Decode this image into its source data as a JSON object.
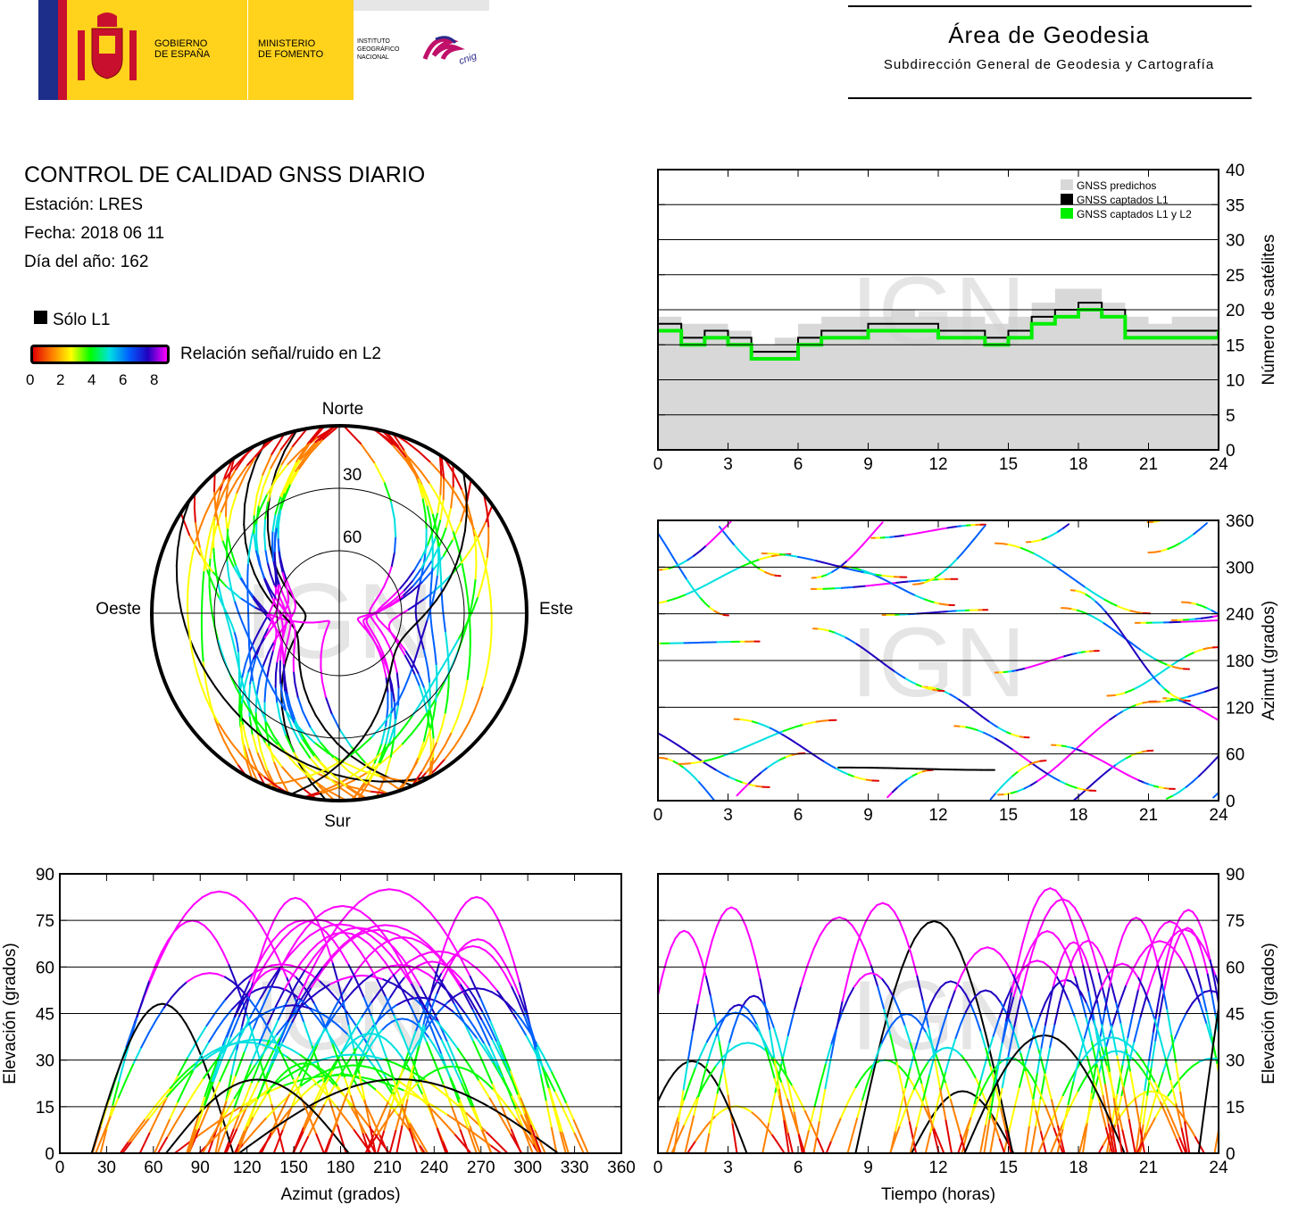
{
  "header": {
    "gov_line1": "GOBIERNO",
    "gov_line2": "DE ESPAÑA",
    "min_line1": "MINISTERIO",
    "min_line2": "DE FOMENTO",
    "inst_line1": "INSTITUTO",
    "inst_line2": "GEOGRÁFICO",
    "inst_line3": "NACIONAL",
    "cnig": "cnig",
    "area_title": "Área de Geodesia",
    "area_subtitle": "Subdirección General de Geodesia y Cartografía"
  },
  "report": {
    "title": "CONTROL DE CALIDAD GNSS DIARIO",
    "station": "Estación: LRES",
    "date": "Fecha: 2018 06 11",
    "doy": "Día del año: 162"
  },
  "legend": {
    "l1_only": "Sólo L1",
    "snr_label": "Relación señal/ruido en L2",
    "snr_ticks": [
      "0",
      "2",
      "4",
      "6",
      "8"
    ],
    "colors": {
      "l1_only": "#000000",
      "snr_gradient": [
        "#e00000",
        "#ff8000",
        "#ffff00",
        "#00ff00",
        "#00e0e0",
        "#0060ff",
        "#2000c0",
        "#ff00ff"
      ]
    }
  },
  "watermark": "IGN",
  "chart_data": [
    {
      "type": "line",
      "title": "",
      "xlabel": "",
      "ylabel": "Número de satélites",
      "xlim": [
        0,
        24
      ],
      "ylim": [
        0,
        40
      ],
      "x_ticks": [
        "0",
        "3",
        "6",
        "9",
        "12",
        "15",
        "18",
        "21",
        "24"
      ],
      "y_ticks": [
        "0",
        "5",
        "10",
        "15",
        "20",
        "25",
        "30",
        "35",
        "40"
      ],
      "grid": true,
      "legend_position": "top-right",
      "x": [
        0,
        1,
        2,
        3,
        4,
        5,
        6,
        7,
        8,
        9,
        10,
        11,
        12,
        13,
        14,
        15,
        16,
        17,
        18,
        19,
        20,
        21,
        22,
        23,
        24
      ],
      "series": [
        {
          "name": "GNSS predichos",
          "color": "#d8d8d8",
          "values": [
            19,
            18,
            18,
            17,
            15,
            16,
            18,
            19,
            19,
            19,
            20,
            19,
            19,
            19,
            18,
            19,
            21,
            23,
            23,
            21,
            19,
            18,
            19,
            19,
            20
          ]
        },
        {
          "name": "GNSS captados L1",
          "color": "#000000",
          "values": [
            18,
            16,
            17,
            16,
            14,
            14,
            16,
            17,
            17,
            18,
            18,
            18,
            17,
            17,
            16,
            17,
            19,
            20,
            21,
            20,
            17,
            17,
            17,
            17,
            18
          ]
        },
        {
          "name": "GNSS captados L1 y L2",
          "color": "#00ee00",
          "values": [
            17,
            15,
            16,
            15,
            13,
            13,
            15,
            16,
            16,
            17,
            17,
            17,
            16,
            16,
            15,
            16,
            18,
            19,
            20,
            19,
            16,
            16,
            16,
            16,
            17
          ]
        }
      ]
    },
    {
      "type": "scatter",
      "title": "",
      "xlabel": "",
      "ylabel": "Azimut (grados)",
      "xlim": [
        0,
        24
      ],
      "ylim": [
        0,
        360
      ],
      "x_ticks": [
        "0",
        "3",
        "6",
        "9",
        "12",
        "15",
        "18",
        "21",
        "24"
      ],
      "y_ticks": [
        "0",
        "60",
        "120",
        "180",
        "240",
        "300",
        "360"
      ],
      "grid": true
    },
    {
      "type": "scatter",
      "title": "",
      "xlabel": "Azimut (grados)",
      "ylabel": "Elevación (grados)",
      "xlim": [
        0,
        360
      ],
      "ylim": [
        0,
        90
      ],
      "x_ticks": [
        "0",
        "30",
        "60",
        "90",
        "120",
        "150",
        "180",
        "210",
        "240",
        "270",
        "300",
        "330",
        "360"
      ],
      "y_ticks": [
        "0",
        "15",
        "30",
        "45",
        "60",
        "75",
        "90"
      ],
      "grid": true
    },
    {
      "type": "scatter",
      "title": "",
      "xlabel": "Tiempo (horas)",
      "ylabel": "Elevación (grados)",
      "xlim": [
        0,
        24
      ],
      "ylim": [
        0,
        90
      ],
      "x_ticks": [
        "0",
        "3",
        "6",
        "9",
        "12",
        "15",
        "18",
        "21",
        "24"
      ],
      "y_ticks": [
        "0",
        "15",
        "30",
        "45",
        "60",
        "75",
        "90"
      ],
      "grid": true
    },
    {
      "type": "scatter",
      "title": "",
      "polar": true,
      "direction_labels": {
        "north": "Norte",
        "south": "Sur",
        "east": "Este",
        "west": "Oeste"
      },
      "ring_labels": [
        "30",
        "60"
      ]
    }
  ]
}
